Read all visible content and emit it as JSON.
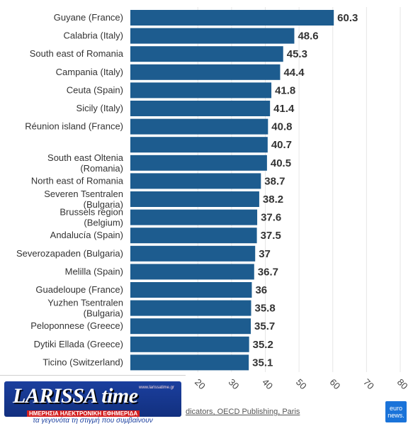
{
  "chart_data": {
    "type": "bar",
    "orientation": "horizontal",
    "categories": [
      "Guyane (France)",
      "Calabria (Italy)",
      "South east of Romania",
      "Campania (Italy)",
      "Ceuta (Spain)",
      "Sicily (Italy)",
      "Réunion island (France)",
      "",
      "South east Oltenia (Romania)",
      "North east of Romania",
      "Severen Tsentralen (Bulgaria)",
      "Brussels region (Belgium)",
      "Andalucía (Spain)",
      "Severozapaden (Bulgaria)",
      "Melilla (Spain)",
      "Guadeloupe (France)",
      "Yuzhen Tsentralen (Bulgaria)",
      "Peloponnese (Greece)",
      "Dytiki Ellada (Greece)",
      "Ticino (Switzerland)"
    ],
    "values": [
      60.3,
      48.6,
      45.3,
      44.4,
      41.8,
      41.4,
      40.8,
      40.7,
      40.5,
      38.7,
      38.2,
      37.6,
      37.5,
      37,
      36.7,
      36,
      35.8,
      35.7,
      35.2,
      35.1
    ],
    "value_labels": [
      "60.3",
      "48.6",
      "45.3",
      "44.4",
      "41.8",
      "41.4",
      "40.8",
      "40.7",
      "40.5",
      "38.7",
      "38.2",
      "37.6",
      "37.5",
      "37",
      "36.7",
      "36",
      "35.8",
      "35.7",
      "35.2",
      "35.1"
    ],
    "xlim": [
      0,
      80
    ],
    "visible_ticks": [
      20,
      30,
      40,
      50,
      60,
      70,
      80
    ],
    "grid": true,
    "bar_color": "#1d5c8f"
  },
  "source_text": "dicators, OECD Publishing, Paris",
  "logo": {
    "name": "LARISSA time",
    "subtitle": "ΗΜΕΡΗΣΙΑ ΗΛΕΚΤΡΟΝΙΚΗ ΕΦΗΜΕΡΙΔΑ",
    "url": "www.larissatime.gr",
    "tagline": "τα γεγονότα τη στιγμή που συμβαίνουν"
  },
  "brand": {
    "line1": "euro",
    "line2": "news."
  }
}
